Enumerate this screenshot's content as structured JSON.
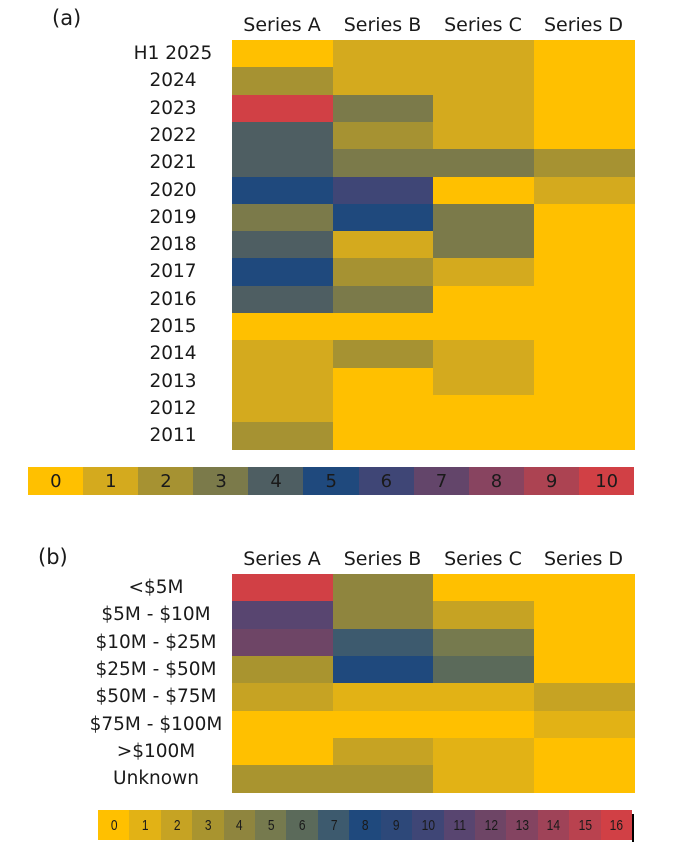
{
  "chart_data": [
    {
      "type": "heatmap",
      "panel_label": "(a)",
      "columns": [
        "Series A",
        "Series B",
        "Series C",
        "Series D"
      ],
      "rows": [
        "H1 2025",
        "2024",
        "2023",
        "2022",
        "2021",
        "2020",
        "2019",
        "2018",
        "2017",
        "2016",
        "2015",
        "2014",
        "2013",
        "2012",
        "2011"
      ],
      "values": [
        [
          0,
          1,
          1,
          0
        ],
        [
          2,
          1,
          1,
          0
        ],
        [
          10,
          3,
          1,
          0
        ],
        [
          4,
          2,
          1,
          0
        ],
        [
          4,
          3,
          3,
          2
        ],
        [
          5,
          6,
          0,
          1
        ],
        [
          3,
          5,
          3,
          0
        ],
        [
          4,
          1,
          3,
          0
        ],
        [
          5,
          2,
          1,
          0
        ],
        [
          4,
          3,
          0,
          0
        ],
        [
          0,
          0,
          0,
          0
        ],
        [
          1,
          2,
          1,
          0
        ],
        [
          1,
          0,
          1,
          0
        ],
        [
          1,
          0,
          0,
          0
        ],
        [
          2,
          0,
          0,
          0
        ]
      ],
      "color_scale": {
        "min": 0,
        "max": 10,
        "ticks": [
          "0",
          "1",
          "2",
          "3",
          "4",
          "5",
          "6",
          "7",
          "8",
          "9",
          "10"
        ],
        "colors": [
          "#FFC000",
          "#D4AA1E",
          "#A69232",
          "#7B7A4A",
          "#4E5E62",
          "#1F497D",
          "#3F4676",
          "#63456A",
          "#884460",
          "#AC4352",
          "#D14045"
        ]
      }
    },
    {
      "type": "heatmap",
      "panel_label": "(b)",
      "columns": [
        "Series A",
        "Series B",
        "Series C",
        "Series D"
      ],
      "rows": [
        "<$5M",
        "$5M - $10M",
        "$10M - $25M",
        "$25M - $50M",
        "$50M - $75M",
        "$75M - $100M",
        ">$100M",
        "Unknown"
      ],
      "values": [
        [
          16,
          4,
          0,
          0
        ],
        [
          11,
          4,
          2,
          0
        ],
        [
          12,
          7,
          5,
          0
        ],
        [
          3,
          8,
          6,
          0
        ],
        [
          2,
          1,
          1,
          2
        ],
        [
          0,
          0,
          0,
          1
        ],
        [
          0,
          2,
          1,
          0
        ],
        [
          3,
          3,
          1,
          0
        ]
      ],
      "color_scale": {
        "min": 0,
        "max": 16,
        "ticks": [
          "0",
          "1",
          "2",
          "3",
          "4",
          "5",
          "6",
          "7",
          "8",
          "9",
          "10",
          "11",
          "12",
          "13",
          "14",
          "15",
          "16"
        ],
        "colors": [
          "#FFC000",
          "#E2B215",
          "#C6A323",
          "#A9942F",
          "#8F853E",
          "#767A4E",
          "#5B6A5A",
          "#3D5A6E",
          "#1F497D",
          "#2D4879",
          "#3F4676",
          "#584570",
          "#6E4566",
          "#844461",
          "#9F4358",
          "#B9424F",
          "#D14045"
        ]
      }
    }
  ]
}
